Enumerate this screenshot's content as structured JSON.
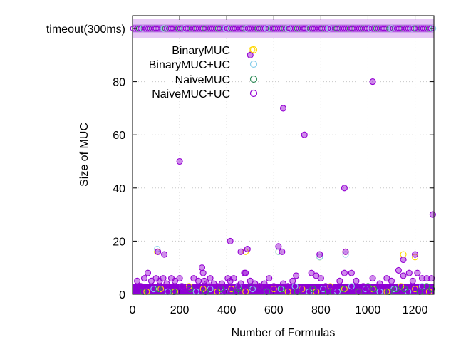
{
  "chart_data": {
    "type": "scatter",
    "title": "",
    "xlabel": "Number of Formulas",
    "ylabel": "Size of MUC",
    "xlim": [
      0,
      1280
    ],
    "ylim": [
      0,
      100
    ],
    "x_ticks": [
      {
        "value": 0,
        "label": "0"
      },
      {
        "value": 200,
        "label": "200"
      },
      {
        "value": 400,
        "label": "400"
      },
      {
        "value": 600,
        "label": "600"
      },
      {
        "value": 800,
        "label": "800"
      },
      {
        "value": 1000,
        "label": "1000"
      },
      {
        "value": 1200,
        "label": "1200"
      }
    ],
    "y_ticks": [
      {
        "value": 0,
        "label": "0"
      },
      {
        "value": 20,
        "label": "20"
      },
      {
        "value": 40,
        "label": "40"
      },
      {
        "value": 60,
        "label": "60"
      },
      {
        "value": 80,
        "label": "80"
      },
      {
        "value": 100,
        "label": "timeout(300ms)"
      }
    ],
    "timeout_value": 100,
    "grid": true,
    "legend_position": "top-left",
    "series": [
      {
        "name": "BinaryMUC",
        "color": "#ffd700",
        "points": [
          [
            60,
            1
          ],
          [
            120,
            2
          ],
          [
            180,
            1
          ],
          [
            240,
            3
          ],
          [
            300,
            2
          ],
          [
            360,
            1
          ],
          [
            420,
            2
          ],
          [
            480,
            1
          ],
          [
            540,
            3
          ],
          [
            600,
            2
          ],
          [
            660,
            1
          ],
          [
            720,
            2
          ],
          [
            780,
            1
          ],
          [
            840,
            3
          ],
          [
            900,
            2
          ],
          [
            960,
            1
          ],
          [
            1020,
            2
          ],
          [
            1080,
            1
          ],
          [
            1140,
            3
          ],
          [
            1200,
            2
          ],
          [
            1260,
            1
          ],
          [
            105,
            16
          ],
          [
            480,
            16
          ],
          [
            508,
            92
          ],
          [
            620,
            16
          ],
          [
            795,
            14
          ],
          [
            905,
            16
          ],
          [
            1150,
            15
          ],
          [
            1200,
            14
          ]
        ]
      },
      {
        "name": "BinaryMUC+UC",
        "color": "#87ceeb",
        "points": [
          [
            90,
            2
          ],
          [
            150,
            1
          ],
          [
            210,
            3
          ],
          [
            270,
            1
          ],
          [
            330,
            2
          ],
          [
            390,
            1
          ],
          [
            450,
            3
          ],
          [
            510,
            2
          ],
          [
            570,
            1
          ],
          [
            630,
            2
          ],
          [
            690,
            3
          ],
          [
            750,
            1
          ],
          [
            810,
            2
          ],
          [
            870,
            1
          ],
          [
            930,
            3
          ],
          [
            990,
            2
          ],
          [
            1050,
            1
          ],
          [
            1110,
            2
          ],
          [
            1170,
            1
          ],
          [
            1230,
            3
          ],
          [
            105,
            17
          ],
          [
            620,
            16
          ],
          [
            795,
            14
          ],
          [
            905,
            15
          ]
        ]
      },
      {
        "name": "NaiveMUC",
        "color": "#2e8b57",
        "points": [
          [
            45,
            1
          ],
          [
            110,
            2
          ],
          [
            175,
            1
          ],
          [
            245,
            2
          ],
          [
            310,
            1
          ],
          [
            375,
            2
          ],
          [
            440,
            1
          ],
          [
            505,
            3
          ],
          [
            570,
            1
          ],
          [
            635,
            2
          ],
          [
            700,
            1
          ],
          [
            765,
            2
          ],
          [
            830,
            1
          ],
          [
            895,
            2
          ],
          [
            960,
            1
          ],
          [
            1025,
            2
          ],
          [
            1090,
            1
          ],
          [
            1155,
            2
          ],
          [
            1220,
            1
          ],
          [
            1270,
            2
          ],
          [
            450,
            2
          ],
          [
            540,
            3
          ],
          [
            1000,
            3
          ],
          [
            1120,
            2
          ],
          [
            1250,
            3
          ]
        ]
      },
      {
        "name": "NaiveMUC+UC",
        "color": "#9400d3",
        "points": [
          [
            20,
            5
          ],
          [
            35,
            3
          ],
          [
            50,
            6
          ],
          [
            65,
            8
          ],
          [
            80,
            5
          ],
          [
            100,
            6
          ],
          [
            115,
            5
          ],
          [
            130,
            6
          ],
          [
            145,
            4
          ],
          [
            165,
            6
          ],
          [
            180,
            5
          ],
          [
            200,
            6
          ],
          [
            210,
            3
          ],
          [
            225,
            2
          ],
          [
            260,
            6
          ],
          [
            280,
            5
          ],
          [
            295,
            10
          ],
          [
            300,
            8
          ],
          [
            305,
            5
          ],
          [
            315,
            4
          ],
          [
            330,
            6
          ],
          [
            345,
            4
          ],
          [
            360,
            3
          ],
          [
            380,
            4
          ],
          [
            405,
            6
          ],
          [
            415,
            5
          ],
          [
            430,
            6
          ],
          [
            445,
            3
          ],
          [
            460,
            4
          ],
          [
            475,
            8
          ],
          [
            480,
            8
          ],
          [
            500,
            5
          ],
          [
            520,
            4
          ],
          [
            540,
            3
          ],
          [
            560,
            4
          ],
          [
            580,
            6
          ],
          [
            600,
            3
          ],
          [
            640,
            4
          ],
          [
            660,
            3
          ],
          [
            680,
            5
          ],
          [
            695,
            7
          ],
          [
            715,
            2
          ],
          [
            760,
            8
          ],
          [
            780,
            7
          ],
          [
            800,
            6
          ],
          [
            820,
            3
          ],
          [
            860,
            2
          ],
          [
            880,
            5
          ],
          [
            900,
            8
          ],
          [
            930,
            8
          ],
          [
            950,
            5
          ],
          [
            980,
            3
          ],
          [
            1000,
            2
          ],
          [
            1020,
            6
          ],
          [
            1050,
            4
          ],
          [
            1080,
            6
          ],
          [
            1100,
            5
          ],
          [
            1130,
            9
          ],
          [
            1150,
            7
          ],
          [
            1175,
            8
          ],
          [
            1190,
            5
          ],
          [
            1210,
            8
          ],
          [
            1230,
            6
          ],
          [
            1250,
            6
          ],
          [
            1270,
            6
          ],
          [
            108,
            16
          ],
          [
            135,
            15
          ],
          [
            200,
            50
          ],
          [
            415,
            20
          ],
          [
            460,
            16
          ],
          [
            488,
            17
          ],
          [
            500,
            90
          ],
          [
            620,
            18
          ],
          [
            635,
            16
          ],
          [
            640,
            70
          ],
          [
            730,
            60
          ],
          [
            795,
            15
          ],
          [
            900,
            40
          ],
          [
            905,
            16
          ],
          [
            1020,
            80
          ],
          [
            1150,
            13
          ],
          [
            1200,
            15
          ],
          [
            1275,
            30
          ]
        ]
      }
    ]
  }
}
